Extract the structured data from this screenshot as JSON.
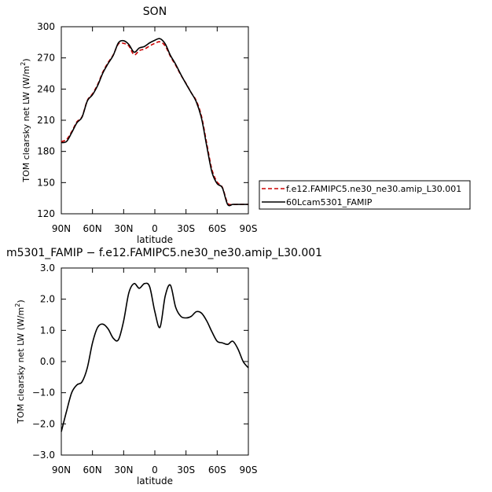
{
  "chart_data": [
    {
      "type": "line",
      "title": "SON",
      "xlabel": "latitude",
      "ylabel": "TOM clearsky net LW (W/m²)",
      "ylabel_main": "TOM clearsky net LW (W/m",
      "ylabel_sup": "2",
      "ylabel_tail": ")",
      "xlim": [
        90,
        -90
      ],
      "ylim": [
        120,
        300
      ],
      "xticks": [
        90,
        60,
        30,
        0,
        -30,
        -60,
        -90
      ],
      "xtick_labels": [
        "90N",
        "60N",
        "30N",
        "0",
        "30S",
        "60S",
        "90S"
      ],
      "yticks": [
        120,
        150,
        180,
        210,
        240,
        270,
        300
      ],
      "ytick_labels": [
        "120",
        "150",
        "180",
        "210",
        "240",
        "270",
        "300"
      ],
      "legend_placement": "right",
      "series": [
        {
          "name": "f.e12.FAMIPC5.ne30_ne30.amip_L30.001",
          "color": "#cc0000",
          "dash": "dashed",
          "x": [
            90,
            85,
            80,
            75,
            70,
            65,
            60,
            55,
            50,
            45,
            40,
            35,
            30,
            25,
            20,
            15,
            10,
            5,
            0,
            -5,
            -10,
            -15,
            -20,
            -25,
            -30,
            -35,
            -40,
            -45,
            -50,
            -55,
            -60,
            -65,
            -70,
            -75,
            -80,
            -85,
            -90
          ],
          "y": [
            189.5,
            191.5,
            199,
            208.5,
            213.5,
            229,
            235.5,
            244.5,
            256.5,
            265.5,
            273,
            283.5,
            284,
            281.5,
            273,
            277,
            278.5,
            281.5,
            284,
            285.5,
            281.5,
            271.5,
            263,
            253.5,
            245.5,
            236.5,
            228.5,
            213.5,
            187.5,
            162.5,
            150.5,
            145.5,
            130.5,
            129,
            129,
            129,
            129
          ]
        },
        {
          "name": "60Lcam5301_FAMIP",
          "color": "#000000",
          "dash": "solid",
          "x": [
            90,
            85,
            80,
            75,
            70,
            65,
            60,
            55,
            50,
            45,
            40,
            35,
            30,
            25,
            20,
            15,
            10,
            5,
            0,
            -5,
            -10,
            -15,
            -20,
            -25,
            -30,
            -35,
            -40,
            -45,
            -50,
            -55,
            -60,
            -65,
            -70,
            -75,
            -80,
            -85,
            -90
          ],
          "y": [
            188.5,
            189.5,
            198,
            207.5,
            213,
            228.5,
            234.5,
            243.5,
            255.5,
            264.5,
            272.5,
            284.5,
            286.5,
            283,
            275.5,
            279.5,
            281,
            284.5,
            287,
            288.5,
            283.5,
            272.5,
            264,
            254,
            245,
            236.5,
            227.5,
            211.5,
            185,
            160,
            149,
            145,
            129,
            129,
            129,
            129,
            129
          ]
        }
      ]
    },
    {
      "type": "line",
      "title": "m5301_FAMIP − f.e12.FAMIPC5.ne30_ne30.amip_L30.001",
      "xlabel": "latitude",
      "ylabel": "TOM clearsky net LW (W/m²)",
      "ylabel_main": "TOM clearsky net LW (W/m",
      "ylabel_sup": "2",
      "ylabel_tail": ")",
      "xlim": [
        90,
        -90
      ],
      "ylim": [
        -3.0,
        3.0
      ],
      "xticks": [
        90,
        60,
        30,
        0,
        -30,
        -60,
        -90
      ],
      "xtick_labels": [
        "90N",
        "60N",
        "30N",
        "0",
        "30S",
        "60S",
        "90S"
      ],
      "yticks": [
        -3,
        -2,
        -1,
        0,
        1,
        2,
        3
      ],
      "ytick_labels": [
        "−3.0",
        "−2.0",
        "−1.0",
        "0.0",
        "1.0",
        "2.0",
        "3.0"
      ],
      "series": [
        {
          "name": "",
          "color": "#000000",
          "dash": "solid",
          "x": [
            90,
            85,
            80,
            75,
            70,
            65,
            60,
            55,
            50,
            45,
            40,
            35,
            30,
            25,
            20,
            15,
            10,
            5,
            0,
            -5,
            -10,
            -15,
            -20,
            -25,
            -30,
            -35,
            -40,
            -45,
            -50,
            -55,
            -60,
            -65,
            -70,
            -75,
            -80,
            -85,
            -90
          ],
          "y": [
            -2.25,
            -1.6,
            -1.0,
            -0.75,
            -0.65,
            -0.2,
            0.6,
            1.1,
            1.2,
            1.05,
            0.75,
            0.7,
            1.3,
            2.2,
            2.5,
            2.35,
            2.5,
            2.4,
            1.6,
            1.1,
            2.1,
            2.45,
            1.75,
            1.45,
            1.4,
            1.45,
            1.6,
            1.55,
            1.3,
            0.95,
            0.65,
            0.6,
            0.55,
            0.65,
            0.4,
            0.0,
            -0.2
          ]
        }
      ]
    }
  ]
}
